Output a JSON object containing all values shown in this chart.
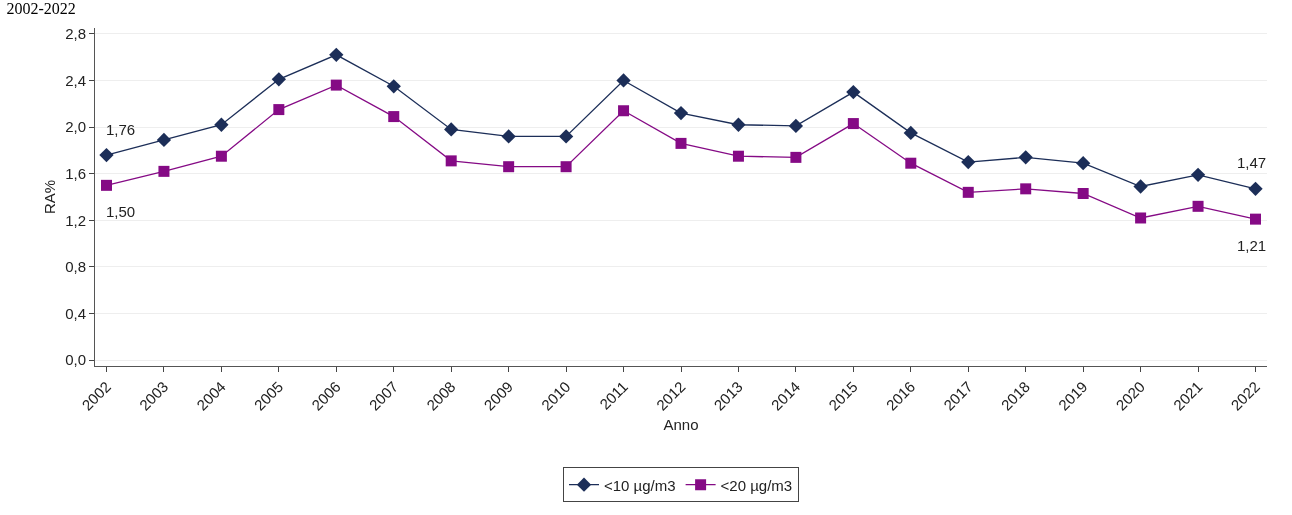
{
  "chart_data": {
    "type": "line",
    "title": "2002-2022",
    "xlabel": "Anno",
    "ylabel": "RA%",
    "categories": [
      "2002",
      "2003",
      "2004",
      "2005",
      "2006",
      "2007",
      "2008",
      "2009",
      "2010",
      "2011",
      "2012",
      "2013",
      "2014",
      "2015",
      "2016",
      "2017",
      "2018",
      "2019",
      "2020",
      "2021",
      "2022"
    ],
    "series": [
      {
        "name": "<10 µg/m3",
        "color": "#1c2e58",
        "marker": "diamond",
        "values": [
          1.76,
          1.89,
          2.02,
          2.41,
          2.62,
          2.35,
          1.98,
          1.92,
          1.92,
          2.4,
          2.12,
          2.02,
          2.01,
          2.3,
          1.95,
          1.7,
          1.74,
          1.69,
          1.49,
          1.59,
          1.47
        ],
        "value_labels": [
          "1,76",
          null,
          null,
          null,
          null,
          null,
          null,
          null,
          null,
          null,
          null,
          null,
          null,
          null,
          null,
          null,
          null,
          null,
          null,
          null,
          "1,47"
        ]
      },
      {
        "name": "<20 µg/m3",
        "color": "#850a85",
        "marker": "square",
        "values": [
          1.5,
          1.62,
          1.75,
          2.15,
          2.36,
          2.09,
          1.71,
          1.66,
          1.66,
          2.14,
          1.86,
          1.75,
          1.74,
          2.03,
          1.69,
          1.44,
          1.47,
          1.43,
          1.22,
          1.32,
          1.21
        ],
        "value_labels": [
          "1,50",
          null,
          null,
          null,
          null,
          null,
          null,
          null,
          null,
          null,
          null,
          null,
          null,
          null,
          null,
          null,
          null,
          null,
          null,
          null,
          "1,21"
        ]
      }
    ],
    "ylim": [
      -0.05,
      2.85
    ],
    "yticks": [
      {
        "value": 0,
        "label": "0,0"
      },
      {
        "value": 0.4,
        "label": "0,4"
      },
      {
        "value": 0.8,
        "label": "0,8"
      },
      {
        "value": 1.2,
        "label": "1,2"
      },
      {
        "value": 1.6,
        "label": "1,6"
      },
      {
        "value": 2.0,
        "label": "2,0"
      },
      {
        "value": 2.4,
        "label": "2,4"
      },
      {
        "value": 2.8,
        "label": "2,8"
      }
    ],
    "grid": "y",
    "legend": "bottom",
    "line_style": "solid"
  }
}
